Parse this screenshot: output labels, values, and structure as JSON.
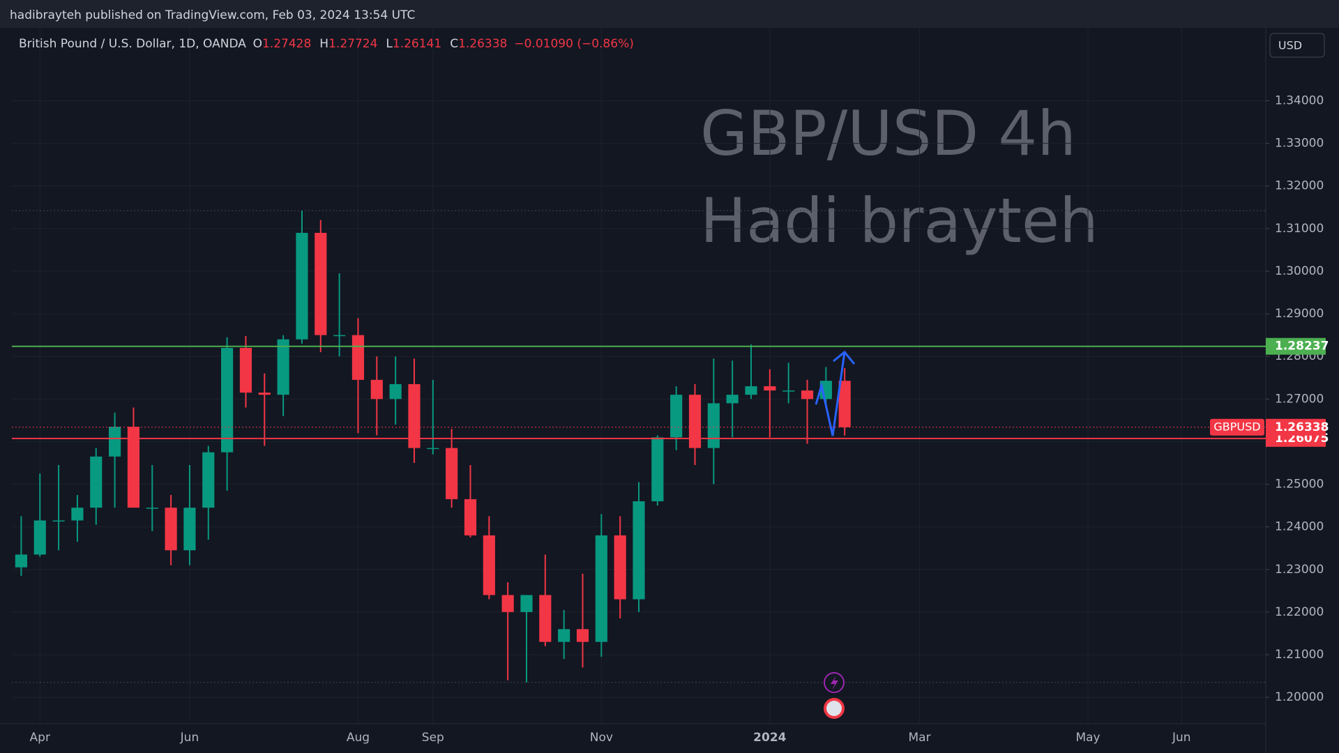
{
  "header": {
    "published": "hadibrayteh published on TradingView.com, Feb 03, 2024 13:54 UTC",
    "symbol": "British Pound / U.S. Dollar, 1D, OANDA",
    "ohlc_letters": [
      "O",
      "H",
      "L",
      "C"
    ],
    "change": "−0.01090 (−0.86%)",
    "currency": "USD"
  },
  "chart_data": {
    "type": "candlestick",
    "watermark": [
      "GBP/USD 4h",
      "Hadi brayteh"
    ],
    "symbol_tag": "GBPUSD",
    "up_color": "#089981",
    "down_color": "#f23645",
    "categories": [
      null,
      "Apr",
      null,
      null,
      null,
      null,
      null,
      null,
      null,
      "Jun",
      null,
      null,
      null,
      null,
      null,
      null,
      null,
      null,
      "Aug",
      null,
      null,
      null,
      "Sep",
      null,
      null,
      null,
      null,
      null,
      null,
      null,
      null,
      "Nov",
      null,
      null,
      null,
      null,
      null,
      null,
      null,
      null,
      "2024",
      null,
      null,
      null,
      null,
      null,
      null,
      null,
      "Mar",
      null,
      null,
      null,
      null,
      null,
      null,
      null,
      null,
      "May",
      null,
      null,
      null,
      null,
      "Jun",
      null,
      null,
      null,
      null
    ],
    "open": [
      1.2305,
      1.2335,
      1.2415,
      1.2415,
      1.2445,
      1.2565,
      1.2635,
      1.2445,
      1.2445,
      1.2345,
      1.2445,
      1.2575,
      1.282,
      1.2715,
      1.271,
      1.284,
      1.309,
      1.285,
      1.285,
      1.2745,
      1.27,
      1.2735,
      1.2585,
      1.2585,
      1.2465,
      1.238,
      1.224,
      1.22,
      1.224,
      1.213,
      1.216,
      1.213,
      1.238,
      1.223,
      1.246,
      1.261,
      1.271,
      1.2585,
      1.269,
      1.271,
      1.273,
      1.272,
      1.272,
      1.27,
      1.27428,
      null,
      null,
      null,
      null,
      null,
      null,
      null,
      null,
      null,
      null,
      null,
      null,
      null,
      null,
      null,
      null,
      null,
      null,
      null,
      null,
      null,
      null
    ],
    "high": [
      1.2425,
      1.2525,
      1.2545,
      1.2475,
      1.2585,
      1.2668,
      1.268,
      1.2545,
      1.2475,
      1.2545,
      1.259,
      1.2845,
      1.2848,
      1.276,
      1.285,
      1.3142,
      1.312,
      1.2995,
      1.289,
      1.28,
      1.28,
      1.2795,
      1.2745,
      1.263,
      1.2545,
      1.2425,
      1.227,
      1.2235,
      1.2335,
      1.2205,
      1.229,
      1.243,
      1.2425,
      1.2505,
      1.2615,
      1.273,
      1.2735,
      1.2795,
      1.279,
      1.2828,
      1.277,
      1.2785,
      1.2745,
      1.2775,
      1.27724,
      null,
      null,
      null,
      null,
      null,
      null,
      null,
      null,
      null,
      null,
      null,
      null,
      null,
      null,
      null,
      null,
      null,
      null,
      null,
      null,
      null,
      null
    ],
    "low": [
      1.2285,
      1.233,
      1.2345,
      1.2365,
      1.2405,
      1.2445,
      1.2445,
      1.239,
      1.231,
      1.231,
      1.237,
      1.2485,
      1.268,
      1.259,
      1.266,
      1.283,
      1.281,
      1.28,
      1.262,
      1.2615,
      1.264,
      1.255,
      1.257,
      1.2445,
      1.2375,
      1.223,
      1.204,
      1.2035,
      1.212,
      1.209,
      1.207,
      1.2095,
      1.2185,
      1.22,
      1.245,
      1.258,
      1.2545,
      1.25,
      1.261,
      1.27,
      1.261,
      1.269,
      1.2595,
      1.268,
      1.26141,
      null,
      null,
      null,
      null,
      null,
      null,
      null,
      null,
      null,
      null,
      null,
      null,
      null,
      null,
      null,
      null,
      null,
      null,
      null,
      null,
      null,
      null
    ],
    "close": [
      1.2335,
      1.2415,
      1.2415,
      1.2445,
      1.2565,
      1.2635,
      1.2445,
      1.2445,
      1.2345,
      1.2445,
      1.2575,
      1.282,
      1.2715,
      1.271,
      1.284,
      1.309,
      1.285,
      1.285,
      1.2745,
      1.27,
      1.2735,
      1.2585,
      1.2585,
      1.2465,
      1.238,
      1.224,
      1.22,
      1.224,
      1.213,
      1.216,
      1.213,
      1.238,
      1.223,
      1.246,
      1.261,
      1.271,
      1.2585,
      1.269,
      1.271,
      1.273,
      1.272,
      1.272,
      1.27,
      1.27428,
      1.26338,
      null,
      null,
      null,
      null,
      null,
      null,
      null,
      null,
      null,
      null,
      null,
      null,
      null,
      null,
      null,
      null,
      null,
      null,
      null,
      null,
      null,
      null
    ],
    "ylim": [
      1.1938,
      1.3571
    ],
    "yticks": [
      {
        "value": 1.2,
        "label": "1.20000"
      },
      {
        "value": 1.21,
        "label": "1.21000"
      },
      {
        "value": 1.22,
        "label": "1.22000"
      },
      {
        "value": 1.23,
        "label": "1.23000"
      },
      {
        "value": 1.24,
        "label": "1.24000"
      },
      {
        "value": 1.25,
        "label": "1.25000"
      },
      {
        "value": 1.26,
        "label": "1.26000"
      },
      {
        "value": 1.27,
        "label": "1.27000"
      },
      {
        "value": 1.28,
        "label": "1.28000"
      },
      {
        "value": 1.29,
        "label": "1.29000"
      },
      {
        "value": 1.3,
        "label": "1.30000"
      },
      {
        "value": 1.31,
        "label": "1.31000"
      },
      {
        "value": 1.32,
        "label": "1.32000"
      },
      {
        "value": 1.33,
        "label": "1.33000"
      },
      {
        "value": 1.34,
        "label": "1.34000"
      }
    ],
    "grid": true,
    "hlines": [
      {
        "value": 1.28237,
        "color": "#4caf50"
      },
      {
        "value": 1.26075,
        "color": "#f23645"
      }
    ]
  }
}
